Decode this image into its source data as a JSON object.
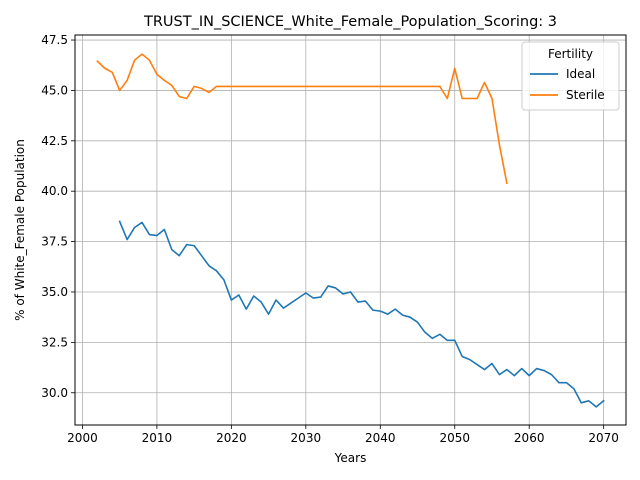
{
  "chart_data": {
    "type": "line",
    "title": "TRUST_IN_SCIENCE_White_Female_Population_Scoring: 3",
    "xlabel": "Years",
    "ylabel": "% of White_Female Population",
    "xlim": [
      1999,
      2073
    ],
    "ylim": [
      28.4,
      47.75
    ],
    "xticks": [
      2000,
      2010,
      2020,
      2030,
      2040,
      2050,
      2060,
      2070
    ],
    "yticks": [
      30.0,
      32.5,
      35.0,
      37.5,
      40.0,
      42.5,
      45.0,
      47.5
    ],
    "xtick_labels": [
      "2000",
      "2010",
      "2020",
      "2030",
      "2040",
      "2050",
      "2060",
      "2070"
    ],
    "ytick_labels": [
      "30.0",
      "32.5",
      "35.0",
      "37.5",
      "40.0",
      "42.5",
      "45.0",
      "47.5"
    ],
    "grid": true,
    "legend": {
      "title": "Fertility",
      "position": "top-right"
    },
    "series": [
      {
        "name": "Ideal",
        "color": "#1f77b4",
        "x": [
          2005,
          2006,
          2007,
          2008,
          2009,
          2010,
          2011,
          2012,
          2013,
          2014,
          2015,
          2016,
          2017,
          2018,
          2019,
          2020,
          2021,
          2022,
          2023,
          2024,
          2025,
          2026,
          2027,
          2028,
          2029,
          2030,
          2031,
          2032,
          2033,
          2034,
          2035,
          2036,
          2037,
          2038,
          2039,
          2040,
          2041,
          2042,
          2043,
          2044,
          2045,
          2046,
          2047,
          2048,
          2049,
          2050,
          2051,
          2052,
          2053,
          2054,
          2055,
          2056,
          2057,
          2058,
          2059,
          2060,
          2061,
          2062,
          2063,
          2064,
          2065,
          2066,
          2067,
          2068,
          2069,
          2070
        ],
        "y": [
          38.5,
          37.6,
          38.2,
          38.45,
          37.85,
          37.8,
          38.1,
          37.1,
          36.8,
          37.35,
          37.3,
          36.8,
          36.3,
          36.05,
          35.6,
          34.6,
          34.85,
          34.15,
          34.8,
          34.5,
          33.9,
          34.6,
          34.2,
          34.45,
          34.7,
          34.95,
          34.7,
          34.75,
          35.3,
          35.2,
          34.9,
          35.0,
          34.5,
          34.55,
          34.1,
          34.05,
          33.9,
          34.15,
          33.85,
          33.75,
          33.5,
          33.0,
          32.7,
          32.9,
          32.6,
          32.6,
          31.8,
          31.65,
          31.4,
          31.15,
          31.45,
          30.9,
          31.15,
          30.85,
          31.2,
          30.85,
          31.2,
          31.1,
          30.9,
          30.5,
          30.5,
          30.2,
          29.5,
          29.6,
          29.3,
          29.6
        ]
      },
      {
        "name": "Sterile",
        "color": "#ff7f0e",
        "x": [
          2002,
          2003,
          2004,
          2005,
          2006,
          2007,
          2008,
          2009,
          2010,
          2011,
          2012,
          2013,
          2014,
          2015,
          2016,
          2017,
          2018,
          2019,
          2020,
          2021,
          2022,
          2023,
          2024,
          2025,
          2026,
          2027,
          2028,
          2029,
          2030,
          2031,
          2032,
          2033,
          2034,
          2035,
          2036,
          2037,
          2038,
          2039,
          2040,
          2041,
          2042,
          2043,
          2044,
          2045,
          2046,
          2047,
          2048,
          2049,
          2050,
          2051,
          2052,
          2053,
          2054,
          2055,
          2056,
          2057
        ],
        "y": [
          46.45,
          46.1,
          45.9,
          45.0,
          45.5,
          46.5,
          46.8,
          46.5,
          45.8,
          45.5,
          45.25,
          44.7,
          44.6,
          45.2,
          45.1,
          44.9,
          45.2,
          45.2,
          45.2,
          45.2,
          45.2,
          45.2,
          45.2,
          45.2,
          45.2,
          45.2,
          45.2,
          45.2,
          45.2,
          45.2,
          45.2,
          45.2,
          45.2,
          45.2,
          45.2,
          45.2,
          45.2,
          45.2,
          45.2,
          45.2,
          45.2,
          45.2,
          45.2,
          45.2,
          45.2,
          45.2,
          45.2,
          44.6,
          46.1,
          44.6,
          44.6,
          44.6,
          45.4,
          44.6,
          42.3,
          40.4
        ]
      }
    ]
  }
}
